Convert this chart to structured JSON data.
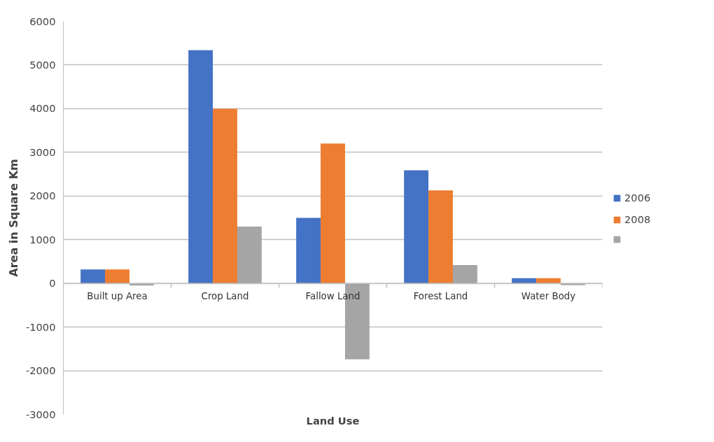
{
  "chart_data": {
    "type": "bar",
    "xlabel": "Land Use",
    "ylabel": "Area in Square Km",
    "categories": [
      "Built up Area",
      "Crop Land",
      "Fallow Land",
      "Forest Land",
      "Water Body"
    ],
    "series": [
      {
        "name": "2006",
        "color": "#4472c4",
        "values": [
          320,
          5340,
          1500,
          2590,
          120
        ]
      },
      {
        "name": "2008",
        "color": "#ed7d31",
        "values": [
          320,
          4000,
          3200,
          2130,
          120
        ]
      },
      {
        "color": "#a5a5a5",
        "values": [
          -50,
          1300,
          -1740,
          420,
          -40
        ]
      }
    ],
    "ylim": [
      -3000,
      6000
    ],
    "yticks": [
      -3000,
      -2000,
      -1000,
      0,
      1000,
      2000,
      3000,
      4000,
      5000,
      6000
    ],
    "grid": "y",
    "legend": "right"
  }
}
